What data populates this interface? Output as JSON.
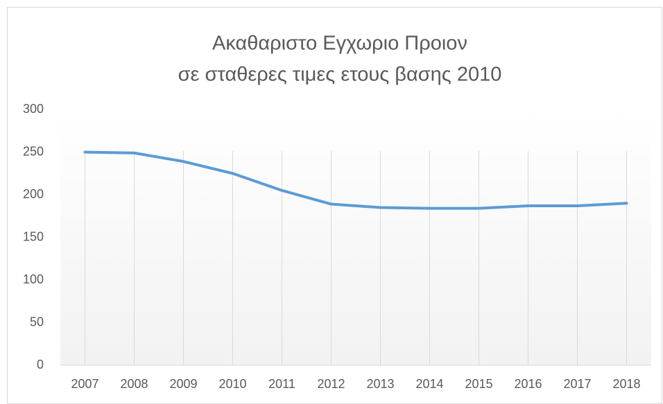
{
  "chart_data": {
    "type": "line",
    "title": [
      "Ακαθαριστο Εγχωριο Προιον",
      "σε σταθερες τιμες ετους βασης 2010"
    ],
    "categories": [
      "2007",
      "2008",
      "2009",
      "2010",
      "2011",
      "2012",
      "2013",
      "2014",
      "2015",
      "2016",
      "2017",
      "2018"
    ],
    "values": [
      250,
      249,
      239,
      225,
      205,
      189,
      185,
      184,
      184,
      187,
      187,
      190
    ],
    "color": "#5b9bd5",
    "ylim": [
      0,
      300
    ],
    "yticks": [
      0,
      50,
      100,
      150,
      200,
      250,
      300
    ],
    "grid": true
  }
}
